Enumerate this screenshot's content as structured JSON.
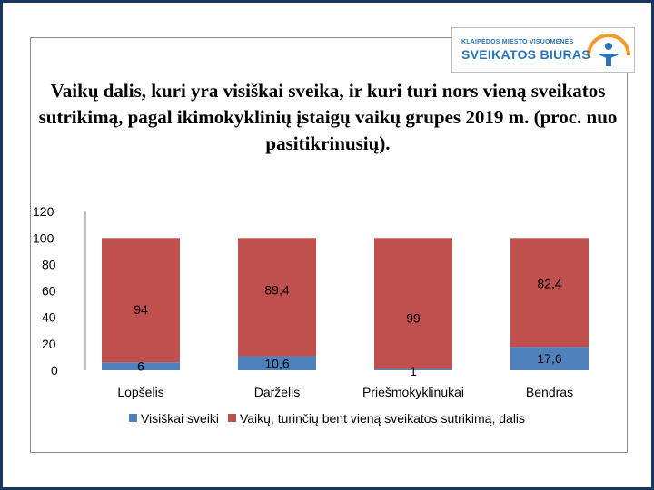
{
  "logo": {
    "line1": "KLAIPĖDOS MIESTO VISUOMENĖS",
    "line2": "SVEIKATOS BIURAS"
  },
  "colors": {
    "healthy": "#4f81bd",
    "disorder": "#c0504d",
    "page_border": "#17375e"
  },
  "chart_data": {
    "type": "bar",
    "stacked": true,
    "title": "Vaikų dalis, kuri yra visiškai sveika, ir kuri turi nors vieną sveikatos sutrikimą, pagal  ikimokyklinių įstaigų vaikų grupes 2019 m. (proc. nuo pasitikrinusių).",
    "xlabel": "",
    "ylabel": "",
    "ylim": [
      0,
      120
    ],
    "yticks": [
      0,
      20,
      40,
      60,
      80,
      100,
      120
    ],
    "grid": false,
    "legend_position": "bottom",
    "categories": [
      "Lopšelis",
      "Darželis",
      "Priešmokyklinukai",
      "Bendras"
    ],
    "series": [
      {
        "name": "Visiškai sveiki",
        "values": [
          6,
          10.6,
          1,
          17.6
        ],
        "labels": [
          "6",
          "10,6",
          "1",
          "17,6"
        ]
      },
      {
        "name": "Vaikų, turinčių bent vieną sveikatos sutrikimą, dalis",
        "values": [
          94,
          89.4,
          99,
          82.4
        ],
        "labels": [
          "94",
          "89,4",
          "99",
          "82,4"
        ]
      }
    ]
  }
}
